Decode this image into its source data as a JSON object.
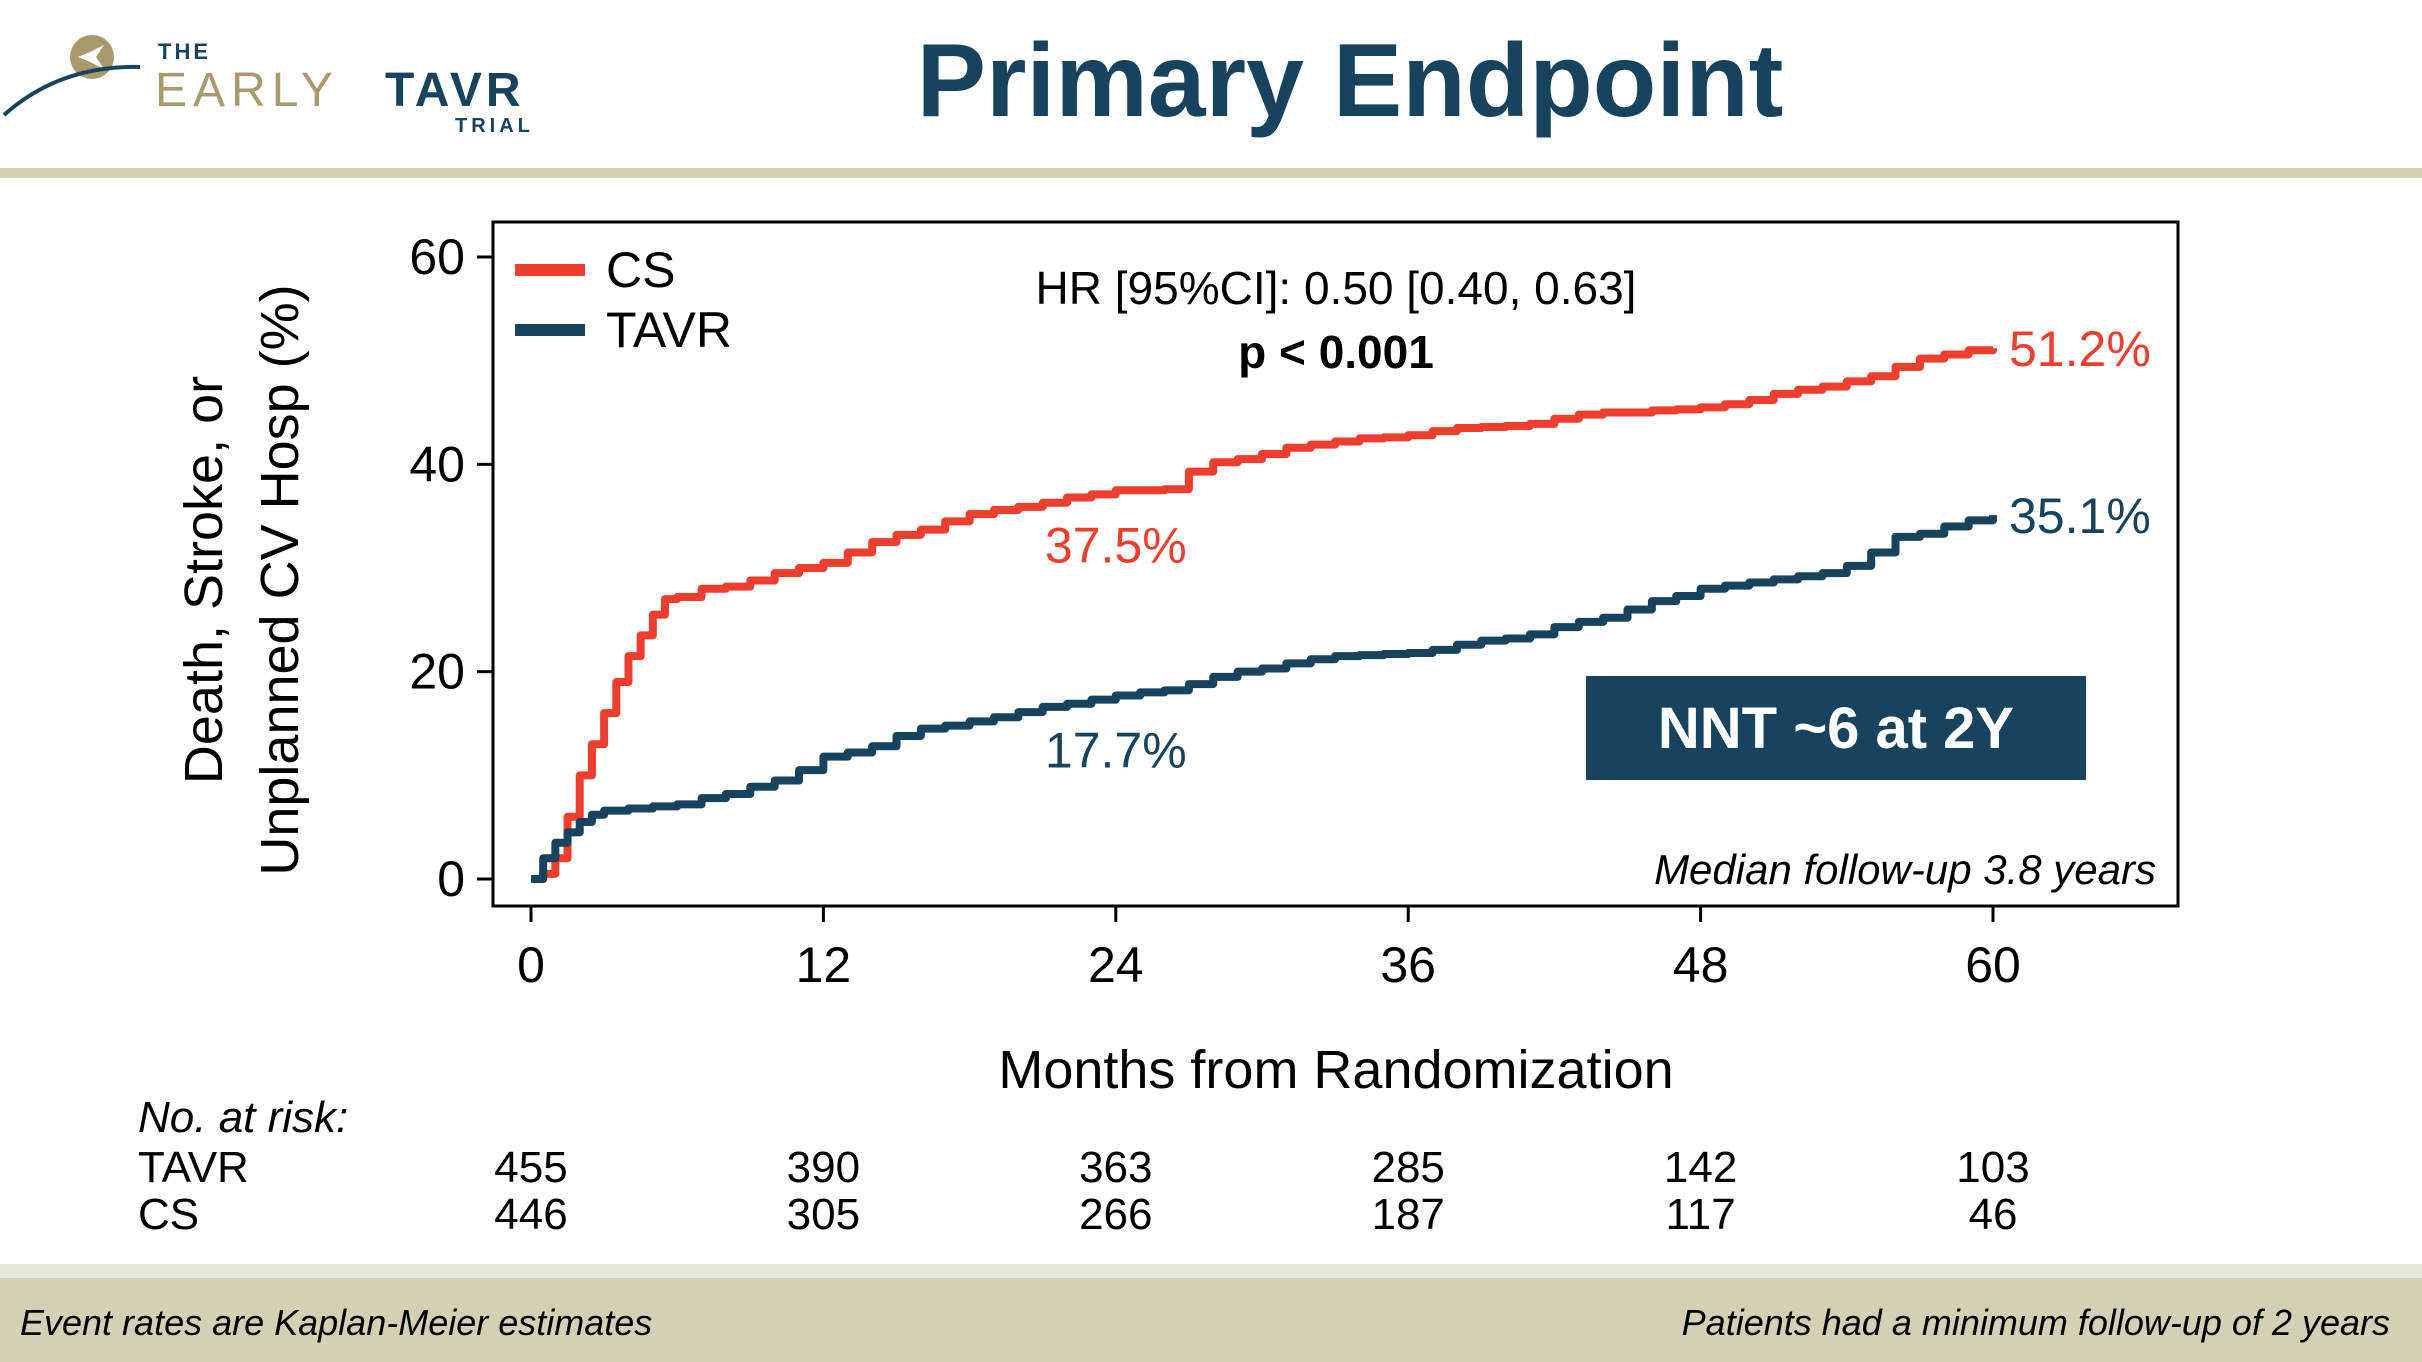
{
  "header": {
    "logo_the": "THE",
    "logo_early": "EARLY",
    "logo_tavr": "TAVR",
    "logo_trial": "TRIAL",
    "title": "Primary Endpoint"
  },
  "colors": {
    "cs": "#ee3e2e",
    "tavr": "#17435e",
    "accent_rule": "#d4d0b4",
    "logo_gold": "#a99a6e"
  },
  "chart_data": {
    "type": "line",
    "subtype": "kaplan-meier",
    "ylabel_line1": "Death, Stroke, or",
    "ylabel_line2": "Unplanned CV Hosp (%)",
    "xlabel": "Months from Randomization",
    "xlim": [
      0,
      60
    ],
    "ylim": [
      0,
      60
    ],
    "xticks": [
      0,
      12,
      24,
      36,
      48,
      60
    ],
    "yticks": [
      0,
      20,
      40,
      60
    ],
    "legend_position": "top-left",
    "hr_text": "HR [95%CI]: 0.50 [0.40, 0.63]",
    "p_text": "p < 0.001",
    "note": "Median follow-up 3.8 years",
    "nnt_box": "NNT ~6 at 2Y",
    "series": [
      {
        "name": "CS",
        "color": "#ee3e2e",
        "end_label": "51.2%",
        "mid_label": "37.5%",
        "mid_label_x": 24,
        "x": [
          0,
          0.5,
          1,
          1.5,
          2,
          2.5,
          3,
          3.5,
          4,
          4.5,
          5,
          5.5,
          6,
          7,
          8,
          9,
          10,
          11,
          12,
          13,
          14,
          15,
          16,
          17,
          18,
          19,
          20,
          21,
          22,
          23,
          24,
          25,
          26,
          27,
          28,
          29,
          30,
          31,
          32,
          33,
          34,
          35,
          36,
          37,
          38,
          39,
          40,
          41,
          42,
          43,
          44,
          45,
          46,
          47,
          48,
          49,
          50,
          51,
          52,
          53,
          54,
          55,
          56,
          57,
          58,
          59,
          60
        ],
        "y": [
          0,
          0.5,
          2,
          6,
          10,
          13,
          16,
          19,
          21.5,
          23.5,
          25.5,
          27,
          27.2,
          28,
          28.2,
          28.8,
          29.5,
          30,
          30.5,
          31.5,
          32.5,
          33.2,
          33.7,
          34.5,
          35.2,
          35.6,
          35.9,
          36.3,
          36.8,
          37.1,
          37.5,
          37.5,
          37.6,
          39.3,
          40.2,
          40.5,
          41,
          41.6,
          41.9,
          42.2,
          42.5,
          42.6,
          42.8,
          43.2,
          43.5,
          43.6,
          43.7,
          43.9,
          44.4,
          44.8,
          45,
          45,
          45.2,
          45.3,
          45.5,
          45.8,
          46.2,
          46.8,
          47.2,
          47.5,
          48,
          48.5,
          49.4,
          50.2,
          50.6,
          51,
          51.2
        ]
      },
      {
        "name": "TAVR",
        "color": "#17435e",
        "end_label": "35.1%",
        "mid_label": "17.7%",
        "mid_label_x": 24,
        "x": [
          0,
          0.5,
          1,
          1.5,
          2,
          2.5,
          3,
          4,
          5,
          6,
          7,
          8,
          9,
          10,
          11,
          12,
          13,
          14,
          15,
          16,
          17,
          18,
          19,
          20,
          21,
          22,
          23,
          24,
          25,
          26,
          27,
          28,
          29,
          30,
          31,
          32,
          33,
          34,
          35,
          36,
          37,
          38,
          39,
          40,
          41,
          42,
          43,
          44,
          45,
          46,
          47,
          48,
          49,
          50,
          51,
          52,
          53,
          54,
          55,
          56,
          57,
          58,
          59,
          60
        ],
        "y": [
          0,
          2,
          3.5,
          4.5,
          5.5,
          6.2,
          6.6,
          6.8,
          7,
          7.2,
          7.8,
          8.2,
          8.9,
          9.5,
          10.5,
          11.8,
          12.2,
          12.8,
          13.8,
          14.5,
          14.8,
          15.2,
          15.6,
          16.1,
          16.6,
          16.9,
          17.3,
          17.7,
          18,
          18.2,
          18.8,
          19.5,
          20,
          20.3,
          20.8,
          21.2,
          21.5,
          21.6,
          21.7,
          21.8,
          22.1,
          22.6,
          23,
          23.2,
          23.6,
          24.3,
          24.8,
          25.2,
          26,
          26.8,
          27.3,
          28,
          28.3,
          28.6,
          28.9,
          29.2,
          29.5,
          30.2,
          31.5,
          33,
          33.3,
          34,
          34.6,
          35.1
        ]
      }
    ]
  },
  "risk_table": {
    "title": "No. at risk:",
    "rows": [
      {
        "label": "TAVR",
        "values": [
          455,
          390,
          363,
          285,
          142,
          103
        ]
      },
      {
        "label": "CS",
        "values": [
          446,
          305,
          266,
          187,
          117,
          46
        ]
      }
    ]
  },
  "footer": {
    "left": "Event rates are Kaplan-Meier estimates",
    "right": "Patients had a minimum follow-up of 2 years"
  }
}
